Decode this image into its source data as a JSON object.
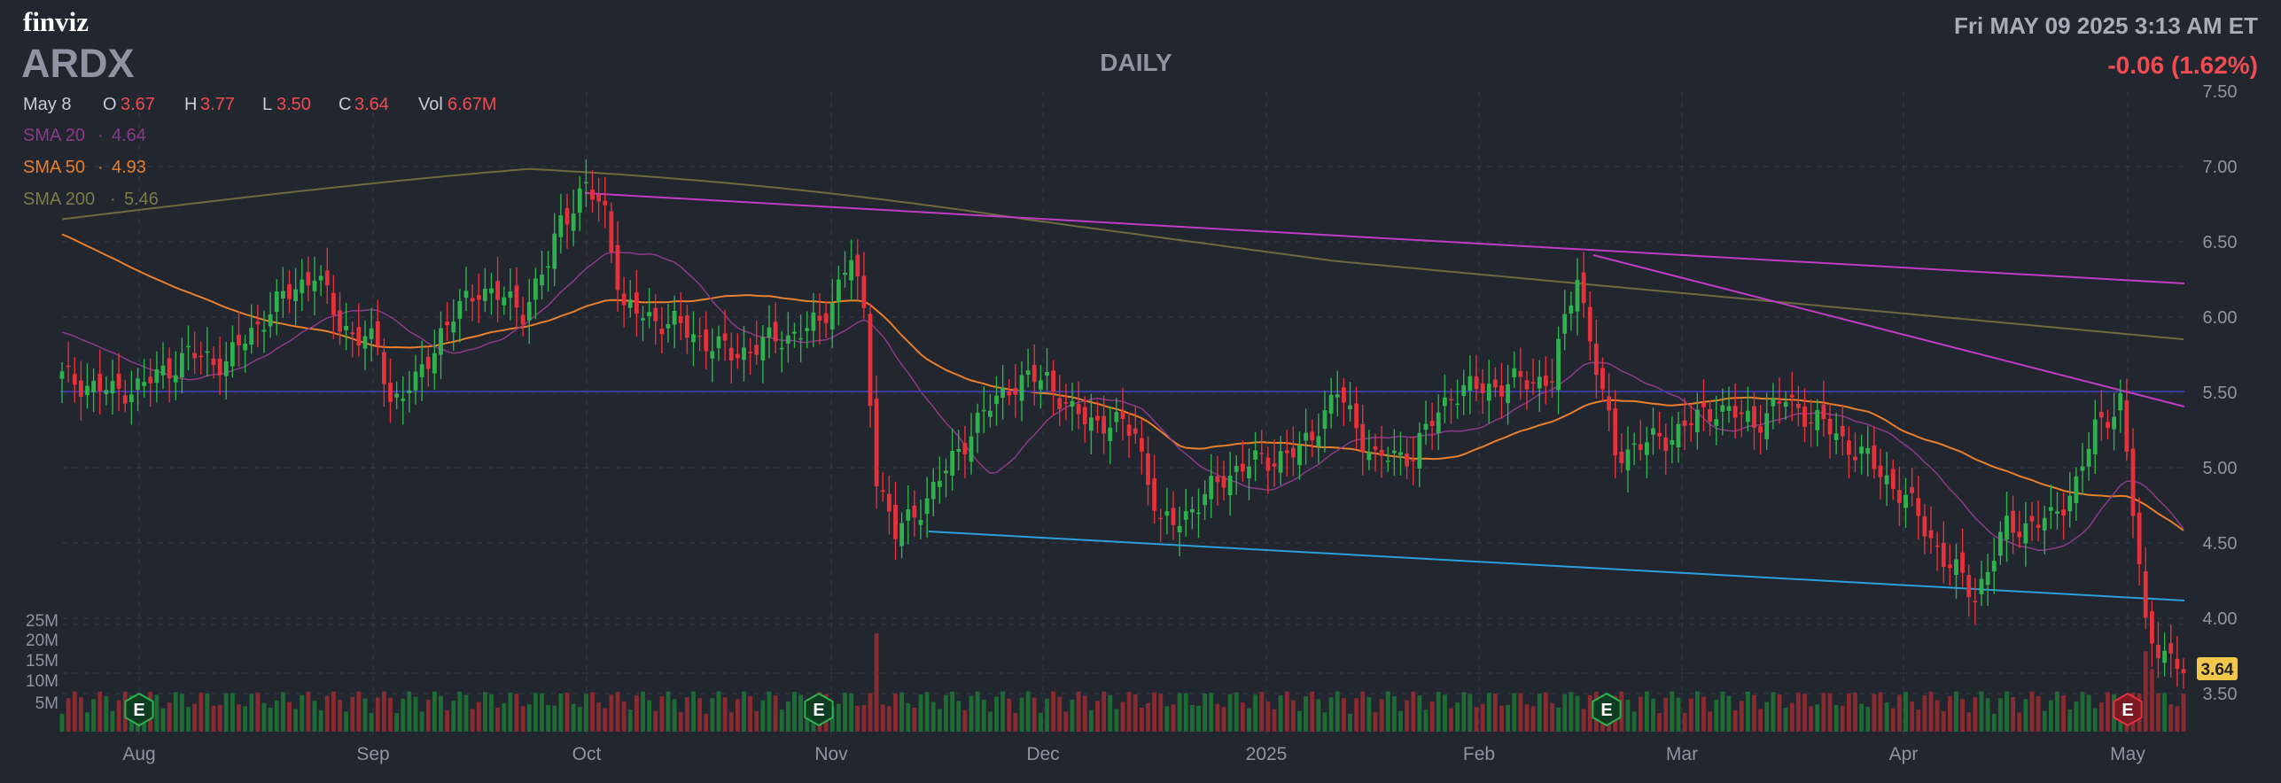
{
  "brand": "finviz",
  "ticker": "ARDX",
  "timeframe": "DAILY",
  "datetime": "Fri MAY 09 2025 3:13 AM ET",
  "change": "-0.06 (1.62%)",
  "colors": {
    "background": "#22262f",
    "up": "#2fb14f",
    "down": "#e5313b",
    "sma20": "#8c3a8a",
    "sma50": "#e97f2b",
    "sma200": "#6e6a3c",
    "trendline_top": "#c13cc4",
    "trendline_bottom": "#2aa0dc",
    "support": "#3a3aa0",
    "negative_text": "#f04b50",
    "muted_text": "#8f94a3",
    "price_label_bg": "#f2c84b"
  },
  "ohlc": {
    "date": "May 8",
    "o_label": "O",
    "o": "3.67",
    "h_label": "H",
    "h": "3.77",
    "l_label": "L",
    "l": "3.50",
    "c_label": "C",
    "c": "3.64",
    "vol_label": "Vol",
    "vol": "6.67M"
  },
  "legend": [
    {
      "name": "SMA 20",
      "sep": "·",
      "value": "4.64"
    },
    {
      "name": "SMA 50",
      "sep": "·",
      "value": "4.93"
    },
    {
      "name": "SMA 200",
      "sep": "·",
      "value": "5.46"
    }
  ],
  "last_price": "3.64",
  "earnings_marker": "E",
  "chart_data": {
    "type": "candlestick",
    "title": "DAILY",
    "y_ticks": [
      "7.50",
      "7.00",
      "6.50",
      "6.00",
      "5.50",
      "5.00",
      "4.50",
      "4.00",
      "3.50"
    ],
    "ylim": [
      3.4,
      7.5
    ],
    "volume_ticks": [
      "25M",
      "20M",
      "15M",
      "10M",
      "5M"
    ],
    "x_ticks": [
      "Aug",
      "Sep",
      "Oct",
      "Nov",
      "Dec",
      "2025",
      "Feb",
      "Mar",
      "Apr",
      "May"
    ],
    "grid": true,
    "support_level": 5.5,
    "earnings_dates": [
      "Aug",
      "Oct 31",
      "Feb 19",
      "May 1"
    ],
    "key_levels": {
      "sept_high": 7.15,
      "oct_pivot": 6.85,
      "feb_high": 6.55,
      "may_low": 3.5,
      "nov_low": 4.35,
      "apr_low": 4.05
    },
    "sma_values_last": {
      "sma20": 4.64,
      "sma50": 4.93,
      "sma200": 5.46
    }
  }
}
